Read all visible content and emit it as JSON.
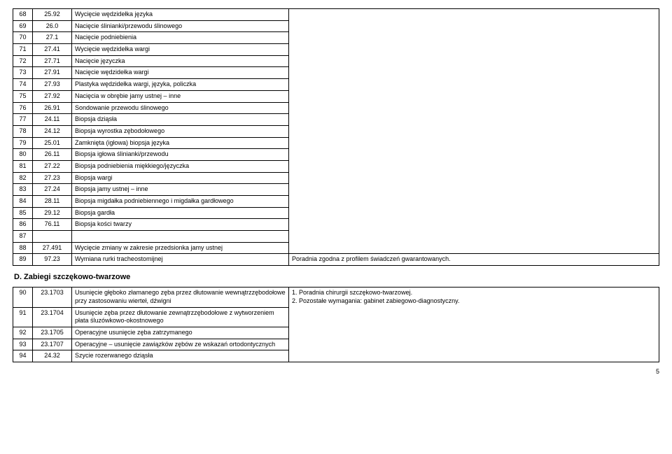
{
  "rows1": [
    {
      "n": "68",
      "c": "25.92",
      "d": "Wycięcie wędzidełka języka"
    },
    {
      "n": "69",
      "c": "26.0",
      "d": "Nacięcie ślinianki/przewodu ślinowego"
    },
    {
      "n": "70",
      "c": "27.1",
      "d": "Nacięcie podniebienia"
    },
    {
      "n": "71",
      "c": "27.41",
      "d": "Wycięcie wędzidełka wargi"
    },
    {
      "n": "72",
      "c": "27.71",
      "d": "Nacięcie języczka"
    },
    {
      "n": "73",
      "c": "27.91",
      "d": "Nacięcie wędzidełka wargi"
    },
    {
      "n": "74",
      "c": "27.93",
      "d": "Plastyka wędzidełka wargi, języka, policzka"
    },
    {
      "n": "75",
      "c": "27.92",
      "d": "Nacięcia w obrębie jamy ustnej – inne"
    },
    {
      "n": "76",
      "c": "26.91",
      "d": "Sondowanie przewodu ślinowego"
    },
    {
      "n": "77",
      "c": "24.11",
      "d": "Biopsja dziąsła"
    },
    {
      "n": "78",
      "c": "24.12",
      "d": "Biopsja wyrostka zębodołowego"
    },
    {
      "n": "79",
      "c": "25.01",
      "d": "Zamknięta (igłowa) biopsja języka"
    },
    {
      "n": "80",
      "c": "26.11",
      "d": "Biopsja igłowa ślinianki/przewodu"
    },
    {
      "n": "81",
      "c": "27.22",
      "d": "Biopsja podniebienia miękkiego/języczka"
    },
    {
      "n": "82",
      "c": "27.23",
      "d": "Biopsja wargi"
    },
    {
      "n": "83",
      "c": "27.24",
      "d": "Biopsja jamy ustnej – inne"
    },
    {
      "n": "84",
      "c": "28.11",
      "d": "Biopsja migdałka podniebiennego i migdałka gardłowego"
    },
    {
      "n": "85",
      "c": "29.12",
      "d": "Biopsja gardła"
    },
    {
      "n": "86",
      "c": "76.11",
      "d": "Biopsja kości twarzy"
    },
    {
      "n": "87",
      "c": "",
      "d": ""
    },
    {
      "n": "88",
      "c": "27.491",
      "d": "Wycięcie zmiany w zakresie przedsionka jamy ustnej"
    }
  ],
  "row89": {
    "n": "89",
    "c": "97.23",
    "d": "Wymiana rurki tracheostomijnej",
    "e": "Poradnia zgodna z profilem świadczeń gwarantowanych."
  },
  "section": "D.  Zabiegi szczękowo-twarzowe",
  "rows2": [
    {
      "n": "90",
      "c": "23.1703",
      "d": "Usunięcie głęboko złamanego zęba przez dłutowanie wewnątrzzębodołowe przy zastosowaniu wierteł, dźwigni"
    },
    {
      "n": "91",
      "c": "23.1704",
      "d": "Usunięcie zęba przez dłutowanie zewnątrzzębodołowe z wytworzeniem płata śluzówkowo-okostnowego"
    },
    {
      "n": "92",
      "c": "23.1705",
      "d": "Operacyjne usunięcie zęba zatrzymanego"
    },
    {
      "n": "93",
      "c": "23.1707",
      "d": "Operacyjne – usunięcie zawiązków zębów ze wskazań ortodontycznych"
    },
    {
      "n": "94",
      "c": "24.32",
      "d": "Szycie rozerwanego dziąsła"
    }
  ],
  "notes2": {
    "l1": "1.  Poradnia chirurgii szczękowo-twarzowej.",
    "l2": "2.  Pozostałe wymagania: gabinet zabiegowo-diagnostyczny."
  },
  "pagenum": "5"
}
